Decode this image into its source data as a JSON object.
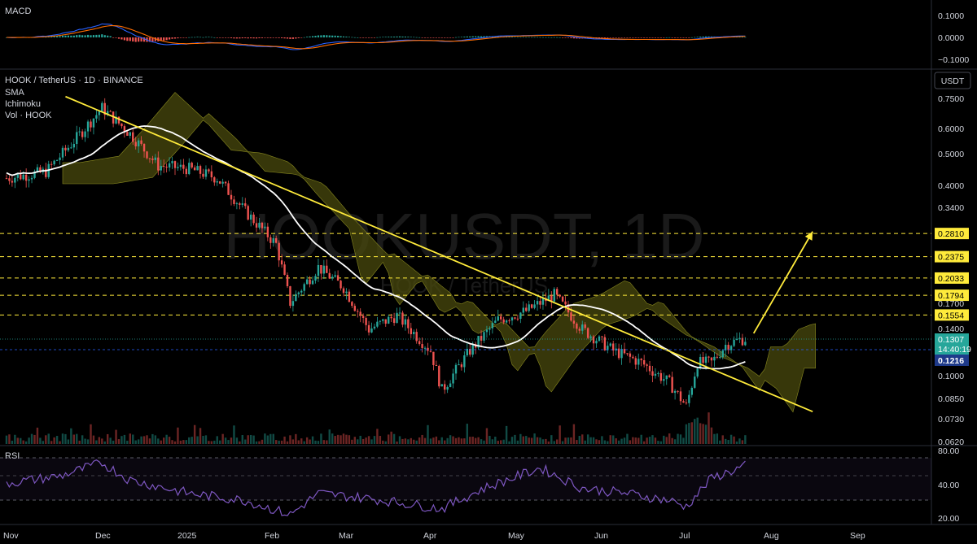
{
  "macd_panel": {
    "label": "MACD",
    "ticks": [
      "0.1000",
      "0.0000",
      "−0.1000"
    ]
  },
  "rsi_panel": {
    "label": "RSI",
    "ticks": [
      "80.00",
      "40.00",
      "20.00"
    ]
  },
  "main_panel": {
    "symbol": "HOOK / TetherUS · 1D · BINANCE",
    "indicators": [
      "SMA",
      "Ichimoku",
      "Vol · HOOK"
    ],
    "currency_button": "USDT",
    "watermark": "HOOKUSDT, 1D",
    "watermark_sub": "HOOK / TetherUS",
    "price_ticks": [
      "0.7500",
      "0.6000",
      "0.5000",
      "0.4000",
      "0.3400",
      "0.1700",
      "0.1400",
      "0.1000",
      "0.0850",
      "0.0730",
      "0.0620"
    ],
    "current_price": "0.1307",
    "countdown": "14:40:19",
    "blue_level": "0.1216"
  },
  "time_axis": [
    "Nov",
    "Dec",
    "2025",
    "Feb",
    "Mar",
    "Apr",
    "May",
    "Jun",
    "Jul",
    "Aug",
    "Sep"
  ],
  "colors": {
    "up": "#26a69a",
    "down": "#ef5350",
    "level": "#ffeb3b",
    "cloud": "#4a4a0e",
    "sma": "#ffffff",
    "rsi": "#7e57c2",
    "macd": "#2962ff",
    "signal": "#ff6d00",
    "price_badge": "#26a69a",
    "blue_badge": "#1e3a8a"
  },
  "chart_data": {
    "type": "candlestick",
    "symbol": "HOOK / TetherUS",
    "interval": "1D",
    "y_scale": "log",
    "price_range": [
      0.062,
      0.78
    ],
    "horizontal_levels": [
      "0.2810",
      "0.2375",
      "0.2033",
      "0.1794",
      "0.1554"
    ],
    "trendline_start": [
      "Nov 22",
      0.76
    ],
    "trendline_end": [
      "Aug 15",
      0.077
    ],
    "target_arrow_start": [
      "Jul 25",
      0.136
    ],
    "target_arrow_end": [
      "Aug 15",
      0.285
    ],
    "close_path": [
      [
        "Nov 1",
        0.42
      ],
      [
        "Nov 15",
        0.44
      ],
      [
        "Nov 25",
        0.55
      ],
      [
        "Dec 5",
        0.7
      ],
      [
        "Dec 15",
        0.58
      ],
      [
        "Dec 25",
        0.46
      ],
      [
        "Jan 5",
        0.45
      ],
      [
        "Jan 15",
        0.42
      ],
      [
        "Jan 25",
        0.33
      ],
      [
        "Feb 5",
        0.26
      ],
      [
        "Feb 10",
        0.17
      ],
      [
        "Feb 20",
        0.22
      ],
      [
        "Mar 1",
        0.19
      ],
      [
        "Mar 10",
        0.14
      ],
      [
        "Mar 20",
        0.155
      ],
      [
        "Apr 1",
        0.12
      ],
      [
        "Apr 5",
        0.09
      ],
      [
        "Apr 15",
        0.12
      ],
      [
        "Apr 25",
        0.15
      ],
      [
        "May 5",
        0.16
      ],
      [
        "May 15",
        0.18
      ],
      [
        "May 25",
        0.14
      ],
      [
        "Jun 5",
        0.12
      ],
      [
        "Jun 15",
        0.11
      ],
      [
        "Jun 25",
        0.095
      ],
      [
        "Jul 1",
        0.08
      ],
      [
        "Jul 5",
        0.11
      ],
      [
        "Jul 10",
        0.11
      ],
      [
        "Jul 15",
        0.125
      ],
      [
        "Jul 20",
        0.13
      ],
      [
        "Jul 22",
        0.1307
      ]
    ],
    "rsi_path": [
      [
        "Nov 1",
        55
      ],
      [
        "Nov 20",
        62
      ],
      [
        "Dec 5",
        75
      ],
      [
        "Dec 15",
        58
      ],
      [
        "Jan 5",
        45
      ],
      [
        "Jan 25",
        38
      ],
      [
        "Feb 10",
        24
      ],
      [
        "Feb 20",
        45
      ],
      [
        "Mar 10",
        40
      ],
      [
        "Apr 5",
        30
      ],
      [
        "Apr 20",
        50
      ],
      [
        "May 10",
        70
      ],
      [
        "May 25",
        50
      ],
      [
        "Jun 10",
        45
      ],
      [
        "Jun 25",
        38
      ],
      [
        "Jul 1",
        32
      ],
      [
        "Jul 10",
        60
      ],
      [
        "Jul 22",
        72
      ]
    ]
  }
}
